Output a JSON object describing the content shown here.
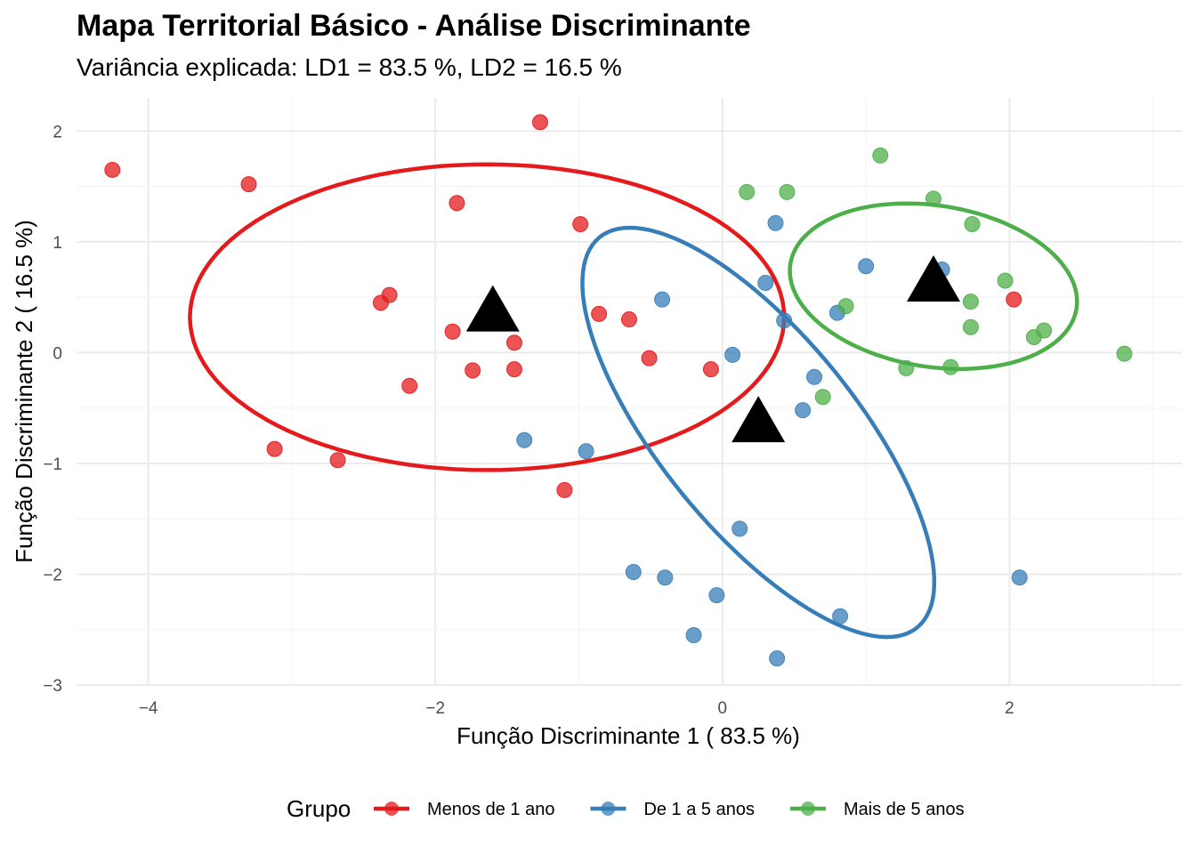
{
  "chart_data": {
    "type": "scatter",
    "title": "Mapa Territorial Básico - Análise Discriminante",
    "subtitle": "Variância explicada: LD1 = 83.5 %, LD2 = 16.5 %",
    "xlabel": "Função Discriminante 1 ( 83.5 %)",
    "ylabel": "Função Discriminante 2 ( 16.5 %)",
    "xlim": [
      -4.5,
      3.2
    ],
    "ylim": [
      -3.0,
      2.3
    ],
    "x_ticks": [
      -4,
      -2,
      0,
      2
    ],
    "y_ticks": [
      -3,
      -2,
      -1,
      0,
      1,
      2
    ],
    "grid": true,
    "legend": {
      "title": "Grupo",
      "position": "bottom"
    },
    "series": [
      {
        "name": "Menos de 1 ano",
        "color": "#E41A1C",
        "points": [
          [
            -4.25,
            1.65
          ],
          [
            -3.3,
            1.52
          ],
          [
            -1.27,
            2.08
          ],
          [
            -1.85,
            1.35
          ],
          [
            -0.99,
            1.16
          ],
          [
            -2.32,
            0.52
          ],
          [
            -2.38,
            0.45
          ],
          [
            -0.86,
            0.35
          ],
          [
            -0.65,
            0.3
          ],
          [
            -1.88,
            0.19
          ],
          [
            -1.45,
            0.09
          ],
          [
            -1.74,
            -0.16
          ],
          [
            -1.45,
            -0.15
          ],
          [
            -0.51,
            -0.05
          ],
          [
            -0.08,
            -0.15
          ],
          [
            -2.18,
            -0.3
          ],
          [
            -3.12,
            -0.87
          ],
          [
            -2.68,
            -0.97
          ],
          [
            -1.1,
            -1.24
          ],
          [
            2.03,
            0.48
          ]
        ],
        "centroid": [
          -1.6,
          0.35
        ],
        "ellipse": {
          "center": [
            -1.64,
            0.32
          ],
          "semi_x": 2.07,
          "semi_y": 1.38,
          "rotation_deg": 0
        }
      },
      {
        "name": "De 1 a 5 anos",
        "color": "#377EB8",
        "points": [
          [
            0.37,
            1.17
          ],
          [
            0.3,
            0.63
          ],
          [
            -0.42,
            0.48
          ],
          [
            1.0,
            0.78
          ],
          [
            1.53,
            0.75
          ],
          [
            0.43,
            0.29
          ],
          [
            0.8,
            0.36
          ],
          [
            0.07,
            -0.02
          ],
          [
            0.64,
            -0.22
          ],
          [
            0.56,
            -0.52
          ],
          [
            -1.38,
            -0.79
          ],
          [
            -0.95,
            -0.89
          ],
          [
            0.12,
            -1.59
          ],
          [
            -0.62,
            -1.98
          ],
          [
            -0.4,
            -2.03
          ],
          [
            -0.04,
            -2.19
          ],
          [
            -0.2,
            -2.55
          ],
          [
            0.82,
            -2.38
          ],
          [
            0.38,
            -2.76
          ],
          [
            2.07,
            -2.03
          ]
        ],
        "centroid": [
          0.25,
          -0.65
        ],
        "ellipse": {
          "center": [
            0.25,
            -0.72
          ],
          "semi_x": 0.74,
          "semi_y": 2.09,
          "rotation_deg": 30
        }
      },
      {
        "name": "Mais de 5 anos",
        "color": "#4DAF4A",
        "points": [
          [
            1.1,
            1.78
          ],
          [
            0.17,
            1.45
          ],
          [
            0.45,
            1.45
          ],
          [
            1.47,
            1.39
          ],
          [
            1.74,
            1.16
          ],
          [
            1.97,
            0.65
          ],
          [
            1.73,
            0.46
          ],
          [
            0.86,
            0.42
          ],
          [
            1.73,
            0.23
          ],
          [
            2.24,
            0.2
          ],
          [
            2.17,
            0.14
          ],
          [
            2.8,
            -0.01
          ],
          [
            1.28,
            -0.14
          ],
          [
            1.59,
            -0.13
          ],
          [
            0.7,
            -0.4
          ]
        ],
        "centroid": [
          1.47,
          0.62
        ],
        "ellipse": {
          "center": [
            1.47,
            0.6
          ],
          "semi_x": 1.02,
          "semi_y": 0.72,
          "rotation_deg": -16
        }
      }
    ]
  }
}
